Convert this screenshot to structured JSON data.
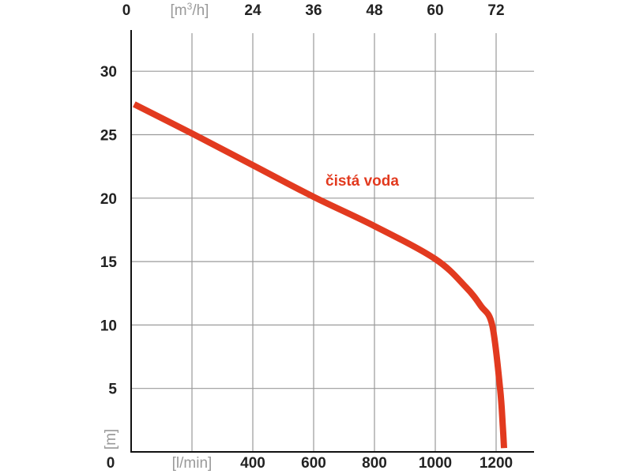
{
  "chart_data": {
    "type": "line",
    "xlabel": "[l/min]",
    "ylabel": "[m]",
    "x2label": "[m3/h]",
    "x2label_sup": "3",
    "xlim": [
      0,
      1300
    ],
    "ylim": [
      0,
      33
    ],
    "x_ticks": [
      "0",
      "400",
      "600",
      "800",
      "1000",
      "1200"
    ],
    "x_tick_values": [
      0,
      400,
      600,
      800,
      1000,
      1200
    ],
    "x2_ticks": [
      "0",
      "24",
      "36",
      "48",
      "60",
      "72"
    ],
    "x2_tick_values_lmin": [
      0,
      400,
      600,
      800,
      1000,
      1200
    ],
    "y_ticks": [
      "0",
      "5",
      "10",
      "15",
      "20",
      "25",
      "30"
    ],
    "y_tick_values": [
      0,
      5,
      10,
      15,
      20,
      25,
      30
    ],
    "grid": true,
    "series": [
      {
        "name": "čistá voda",
        "color": "#e23a1f",
        "x": [
          10,
          200,
          400,
          600,
          800,
          1000,
          1100,
          1150,
          1187,
          1213,
          1222,
          1226
        ],
        "y": [
          27.4,
          25.1,
          22.6,
          20.1,
          17.8,
          15.2,
          13.0,
          11.5,
          10.0,
          5.0,
          2.0,
          0.3
        ]
      }
    ]
  }
}
